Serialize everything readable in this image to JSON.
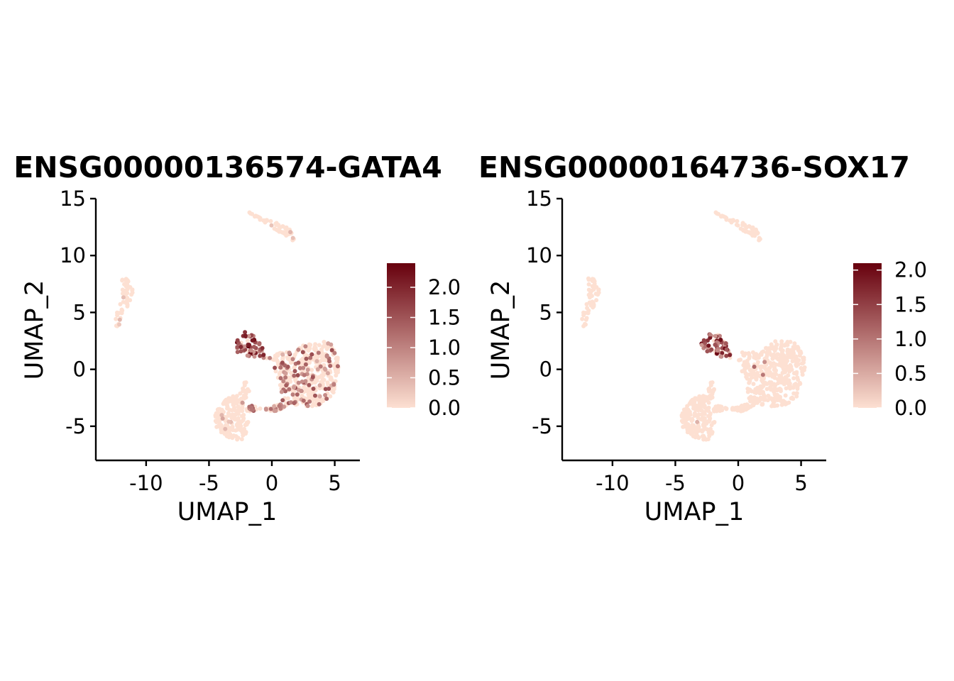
{
  "chart_data": [
    {
      "type": "scatter",
      "title": "ENSG00000136574-GATA4",
      "xlabel": "UMAP_1",
      "ylabel": "UMAP_2",
      "xlim": [
        -14,
        7
      ],
      "ylim": [
        -8,
        15
      ],
      "xticks": [
        -10,
        -5,
        0,
        5
      ],
      "yticks": [
        -5,
        0,
        5,
        10,
        15
      ],
      "xtick_labels": [
        "-10",
        "-5",
        "0",
        "5"
      ],
      "ytick_labels": [
        "-5",
        "0",
        "5",
        "10",
        "15"
      ],
      "colorbar": {
        "min": 0,
        "max": 2.4,
        "ticks": [
          0.0,
          0.5,
          1.0,
          1.5,
          2.0
        ],
        "tick_labels": [
          "0.0",
          "0.5",
          "1.0",
          "1.5",
          "2.0"
        ],
        "low_color": "#fde0d2",
        "high_color": "#67000d"
      },
      "clusters": [
        {
          "shape": "poly",
          "pts": [
            [
              -1.9,
              13.9
            ],
            [
              -0.7,
              13.2
            ],
            [
              0.9,
              12.8
            ],
            [
              1.9,
              12.1
            ],
            [
              1.8,
              11.1
            ],
            [
              1.0,
              11.8
            ],
            [
              -0.2,
              12.6
            ],
            [
              -1.7,
              13.6
            ]
          ],
          "n": 60,
          "expr_frac": 0.03,
          "expr_max": 0.6
        },
        {
          "shape": "poly",
          "pts": [
            [
              -12.0,
              8.2
            ],
            [
              -11.4,
              8.0
            ],
            [
              -11.2,
              7.2
            ],
            [
              -10.9,
              6.7
            ],
            [
              -11.3,
              5.8
            ],
            [
              -11.8,
              4.8
            ],
            [
              -12.0,
              4.2
            ],
            [
              -12.3,
              3.6
            ],
            [
              -12.6,
              4.3
            ],
            [
              -12.2,
              5.5
            ],
            [
              -11.9,
              6.5
            ],
            [
              -11.9,
              7.5
            ]
          ],
          "n": 50,
          "expr_frac": 0.04,
          "expr_max": 0.5
        },
        {
          "shape": "poly",
          "pts": [
            [
              -2.9,
              2.4
            ],
            [
              -2.0,
              3.5
            ],
            [
              -1.1,
              2.6
            ],
            [
              -0.6,
              1.7
            ],
            [
              0.0,
              0.9
            ],
            [
              -1.5,
              1.0
            ],
            [
              -3.0,
              1.6
            ]
          ],
          "n": 70,
          "expr_frac": 0.9,
          "expr_max": 2.4
        },
        {
          "shape": "poly",
          "pts": [
            [
              0.3,
              1.5
            ],
            [
              1.6,
              1.5
            ],
            [
              3.0,
              2.5
            ],
            [
              4.6,
              2.4
            ],
            [
              5.4,
              0.8
            ],
            [
              5.0,
              -2.1
            ],
            [
              3.7,
              -3.2
            ],
            [
              2.2,
              -3.3
            ],
            [
              0.9,
              -3.0
            ],
            [
              0.6,
              -1.2
            ],
            [
              0.0,
              0.9
            ]
          ],
          "n": 420,
          "expr_frac": 0.25,
          "expr_max": 1.6
        },
        {
          "shape": "poly",
          "pts": [
            [
              -2.1,
              -3.0
            ],
            [
              0.3,
              -3.8
            ],
            [
              1.8,
              -2.8
            ],
            [
              0.2,
              -3.2
            ],
            [
              -2.0,
              -3.8
            ]
          ],
          "n": 60,
          "expr_frac": 0.3,
          "expr_max": 1.4
        },
        {
          "shape": "poly",
          "pts": [
            [
              -2.1,
              -0.9
            ],
            [
              -2.5,
              -2.1
            ],
            [
              -3.6,
              -2.6
            ],
            [
              -4.6,
              -3.9
            ],
            [
              -4.4,
              -5.2
            ],
            [
              -3.3,
              -6.3
            ],
            [
              -2.1,
              -6.1
            ],
            [
              -1.8,
              -4.6
            ],
            [
              -2.3,
              -3.2
            ],
            [
              -1.8,
              -1.9
            ]
          ],
          "n": 200,
          "expr_frac": 0.03,
          "expr_max": 0.8
        }
      ]
    },
    {
      "type": "scatter",
      "title": "ENSG00000164736-SOX17",
      "xlabel": "UMAP_1",
      "ylabel": "UMAP_2",
      "xlim": [
        -14,
        7
      ],
      "ylim": [
        -8,
        15
      ],
      "xticks": [
        -10,
        -5,
        0,
        5
      ],
      "yticks": [
        -5,
        0,
        5,
        10,
        15
      ],
      "xtick_labels": [
        "-10",
        "-5",
        "0",
        "5"
      ],
      "ytick_labels": [
        "-5",
        "0",
        "5",
        "10",
        "15"
      ],
      "colorbar": {
        "min": 0,
        "max": 2.1,
        "ticks": [
          0.0,
          0.5,
          1.0,
          1.5,
          2.0
        ],
        "tick_labels": [
          "0.0",
          "0.5",
          "1.0",
          "1.5",
          "2.0"
        ],
        "low_color": "#fde0d2",
        "high_color": "#67000d"
      },
      "clusters": [
        {
          "shape": "poly",
          "pts": [
            [
              -1.9,
              13.9
            ],
            [
              -0.7,
              13.2
            ],
            [
              0.9,
              12.8
            ],
            [
              1.9,
              12.1
            ],
            [
              1.8,
              11.1
            ],
            [
              1.0,
              11.8
            ],
            [
              -0.2,
              12.6
            ],
            [
              -1.7,
              13.6
            ]
          ],
          "n": 60,
          "expr_frac": 0.0,
          "expr_max": 0.2
        },
        {
          "shape": "poly",
          "pts": [
            [
              -12.0,
              8.2
            ],
            [
              -11.4,
              8.0
            ],
            [
              -11.2,
              7.2
            ],
            [
              -10.9,
              6.7
            ],
            [
              -11.3,
              5.8
            ],
            [
              -11.8,
              4.8
            ],
            [
              -12.0,
              4.2
            ],
            [
              -12.3,
              3.6
            ],
            [
              -12.6,
              4.3
            ],
            [
              -12.2,
              5.5
            ],
            [
              -11.9,
              6.5
            ],
            [
              -11.9,
              7.5
            ]
          ],
          "n": 50,
          "expr_frac": 0.0,
          "expr_max": 0.2
        },
        {
          "shape": "poly",
          "pts": [
            [
              -2.9,
              2.4
            ],
            [
              -2.0,
              3.5
            ],
            [
              -1.1,
              2.6
            ],
            [
              -0.6,
              1.7
            ],
            [
              0.0,
              0.9
            ],
            [
              -1.5,
              1.0
            ],
            [
              -3.0,
              1.6
            ]
          ],
          "n": 70,
          "expr_frac": 0.75,
          "expr_max": 2.1
        },
        {
          "shape": "poly",
          "pts": [
            [
              0.3,
              1.5
            ],
            [
              1.6,
              1.5
            ],
            [
              3.0,
              2.5
            ],
            [
              4.6,
              2.4
            ],
            [
              5.4,
              0.8
            ],
            [
              5.0,
              -2.1
            ],
            [
              3.7,
              -3.2
            ],
            [
              2.2,
              -3.3
            ],
            [
              0.9,
              -3.0
            ],
            [
              0.6,
              -1.2
            ],
            [
              0.0,
              0.9
            ]
          ],
          "n": 420,
          "expr_frac": 0.005,
          "expr_max": 1.2
        },
        {
          "shape": "poly",
          "pts": [
            [
              -2.1,
              -3.0
            ],
            [
              0.3,
              -3.8
            ],
            [
              1.8,
              -2.8
            ],
            [
              0.2,
              -3.2
            ],
            [
              -2.0,
              -3.8
            ]
          ],
          "n": 60,
          "expr_frac": 0.0,
          "expr_max": 0.3
        },
        {
          "shape": "poly",
          "pts": [
            [
              -2.1,
              -0.9
            ],
            [
              -2.5,
              -2.1
            ],
            [
              -3.6,
              -2.6
            ],
            [
              -4.6,
              -3.9
            ],
            [
              -4.4,
              -5.2
            ],
            [
              -3.3,
              -6.3
            ],
            [
              -2.1,
              -6.1
            ],
            [
              -1.8,
              -4.6
            ],
            [
              -2.3,
              -3.2
            ],
            [
              -1.8,
              -1.9
            ]
          ],
          "n": 200,
          "expr_frac": 0.01,
          "expr_max": 0.9
        }
      ]
    }
  ]
}
